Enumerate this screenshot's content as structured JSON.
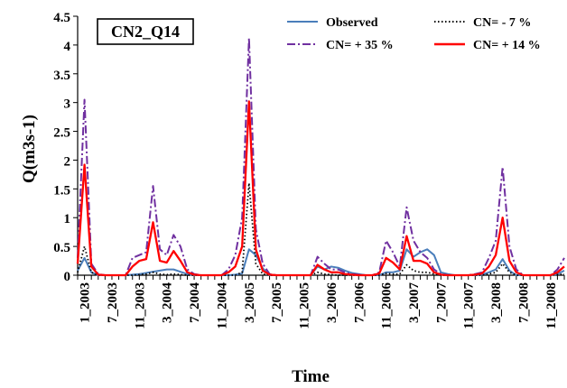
{
  "chart_data": {
    "type": "line",
    "title": "CN2_Q14",
    "xlabel": "Time",
    "ylabel": "Q(m3s-1)",
    "ylim": [
      0,
      4.5
    ],
    "yticks": [
      "0",
      "0.5",
      "1",
      "1.5",
      "2",
      "2.5",
      "3",
      "3.5",
      "4",
      "4.5"
    ],
    "xtick_labels": [
      "1_2003",
      "7_2003",
      "11_2003",
      "3_2004",
      "7_2004",
      "11_2004",
      "3_2005",
      "7_2005",
      "11_2005",
      "3_2006",
      "7_2006",
      "11_2006",
      "3_2007",
      "7_2007",
      "11_2007",
      "3_2008",
      "7_2008",
      "11_2008"
    ],
    "legend_position": "top-right",
    "grid": false,
    "x_start": "2002-12",
    "series": [
      {
        "name": "Observed",
        "color": "#4a7ebb",
        "dash": "solid",
        "values": [
          0.08,
          0.3,
          0.05,
          0,
          0,
          0,
          0,
          0,
          0.01,
          0.02,
          0.04,
          0.06,
          0.08,
          0.1,
          0.1,
          0.06,
          0.02,
          0,
          0,
          0,
          0,
          0,
          0,
          0.01,
          0.03,
          0.45,
          0.35,
          0.12,
          0,
          0,
          0,
          0,
          0,
          0,
          0,
          0.15,
          0.1,
          0.15,
          0.13,
          0.08,
          0.04,
          0.02,
          0,
          0,
          0,
          0.05,
          0.05,
          0.08,
          0.45,
          0.32,
          0.4,
          0.45,
          0.35,
          0.05,
          0.02,
          0,
          0,
          0,
          0,
          0.01,
          0.05,
          0.1,
          0.28,
          0.08,
          0,
          0,
          0,
          0,
          0,
          0,
          0.02,
          0.08
        ]
      },
      {
        "name": "CN=  + 35 %",
        "color": "#7030a0",
        "dash": "dashdot",
        "values": [
          0.3,
          3.05,
          0.2,
          0.02,
          0,
          0,
          0,
          0,
          0.3,
          0.35,
          0.4,
          1.55,
          0.45,
          0.35,
          0.7,
          0.5,
          0.1,
          0.02,
          0,
          0,
          0,
          0,
          0.1,
          0.35,
          1.0,
          4.12,
          0.8,
          0.2,
          0.02,
          0,
          0,
          0,
          0,
          0,
          0,
          0.32,
          0.2,
          0.1,
          0.1,
          0.05,
          0.02,
          0.01,
          0,
          0,
          0.05,
          0.6,
          0.4,
          0.15,
          1.18,
          0.6,
          0.4,
          0.3,
          0.1,
          0.02,
          0,
          0,
          0,
          0,
          0.02,
          0.05,
          0.3,
          0.6,
          1.88,
          0.5,
          0.1,
          0,
          0,
          0,
          0,
          0,
          0.1,
          0.3
        ]
      },
      {
        "name": "CN= - 7 %",
        "color": "#000000",
        "dash": "dotted",
        "values": [
          0.05,
          0.5,
          0.05,
          0,
          0,
          0,
          0,
          0,
          0,
          0.01,
          0.02,
          0.05,
          0.02,
          0.01,
          0.02,
          0.01,
          0,
          0,
          0,
          0,
          0,
          0,
          0,
          0,
          0.05,
          1.6,
          0.2,
          0.02,
          0,
          0,
          0,
          0,
          0,
          0,
          0,
          0.05,
          0.02,
          0.01,
          0,
          0,
          0,
          0,
          0,
          0,
          0,
          0.03,
          0.02,
          0.02,
          0.18,
          0.08,
          0.05,
          0.05,
          0.02,
          0,
          0,
          0,
          0,
          0,
          0,
          0,
          0.02,
          0.05,
          0.2,
          0.05,
          0,
          0,
          0,
          0,
          0,
          0,
          0.01,
          0.02
        ]
      },
      {
        "name": "CN= + 14 %",
        "color": "#ff0000",
        "dash": "solid",
        "values": [
          0.2,
          1.92,
          0.15,
          0.01,
          0,
          0,
          0,
          0,
          0.15,
          0.25,
          0.28,
          0.92,
          0.25,
          0.22,
          0.42,
          0.25,
          0.05,
          0.01,
          0,
          0,
          0,
          0,
          0.05,
          0.15,
          0.5,
          3.02,
          0.45,
          0.08,
          0.01,
          0,
          0,
          0,
          0,
          0,
          0,
          0.18,
          0.1,
          0.05,
          0.05,
          0.02,
          0.01,
          0,
          0,
          0,
          0.03,
          0.3,
          0.22,
          0.1,
          0.68,
          0.25,
          0.25,
          0.2,
          0.05,
          0.01,
          0,
          0,
          0,
          0,
          0.01,
          0.03,
          0.15,
          0.35,
          1.0,
          0.25,
          0.05,
          0,
          0,
          0,
          0,
          0,
          0.05,
          0.15
        ]
      }
    ]
  }
}
